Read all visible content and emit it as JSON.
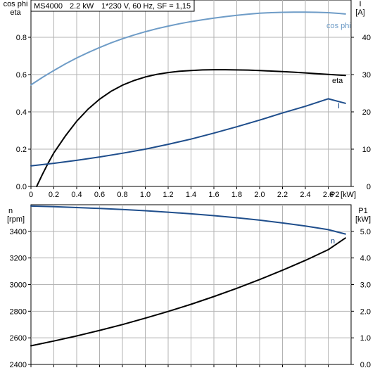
{
  "header": {
    "model": "MS4000",
    "power": "2.2 kW",
    "supply": "1*230 V, 60 Hz, SF = 1,15"
  },
  "colors": {
    "cosphi": "#6e9cc7",
    "eta": "#000000",
    "current": "#1f4e8c",
    "speed": "#1f4e8c",
    "p1": "#000000",
    "grid": "#b3b3b3",
    "frame": "#000000"
  },
  "chart_data": [
    {
      "type": "line",
      "title": "",
      "x_axis": {
        "label": "P2 [kW]",
        "label_name": "P2",
        "label_unit": "[kW]",
        "range": [
          0,
          2.8
        ],
        "ticks": [
          0,
          0.2,
          0.4,
          0.6,
          0.8,
          1.0,
          1.2,
          1.4,
          1.6,
          1.8,
          2.0,
          2.2,
          2.4,
          2.6
        ],
        "tick_labels": [
          "0",
          "0.2",
          "0.4",
          "0.6",
          "0.8",
          "1.0",
          "1.2",
          "1.4",
          "1.6",
          "1.8",
          "2.0",
          "2.2",
          "2.4",
          "2.6"
        ]
      },
      "y_left": {
        "label_lines": [
          "cos phi",
          "eta"
        ],
        "range": [
          0,
          1.0
        ],
        "ticks": [
          0,
          0.2,
          0.4,
          0.6,
          0.8
        ],
        "tick_labels": [
          "0.0",
          "0.2",
          "0.4",
          "0.6",
          "0.8"
        ]
      },
      "y_right": {
        "label_lines": [
          "I",
          "[A]"
        ],
        "range": [
          0,
          50
        ],
        "ticks": [
          0,
          10,
          20,
          30,
          40
        ],
        "tick_labels": [
          "0",
          "10",
          "20",
          "30",
          "40"
        ]
      },
      "grid": true,
      "series": [
        {
          "name": "cos phi",
          "axis": "left",
          "color_key": "cosphi",
          "x": [
            0,
            0.1,
            0.2,
            0.3,
            0.4,
            0.5,
            0.6,
            0.7,
            0.8,
            0.9,
            1.0,
            1.1,
            1.2,
            1.3,
            1.4,
            1.5,
            1.6,
            1.7,
            1.8,
            1.9,
            2.0,
            2.1,
            2.2,
            2.3,
            2.4,
            2.5,
            2.6,
            2.7,
            2.75
          ],
          "values": [
            0.545,
            0.585,
            0.622,
            0.657,
            0.689,
            0.718,
            0.745,
            0.77,
            0.792,
            0.812,
            0.83,
            0.846,
            0.86,
            0.873,
            0.884,
            0.894,
            0.903,
            0.911,
            0.918,
            0.924,
            0.929,
            0.932,
            0.934,
            0.935,
            0.935,
            0.934,
            0.932,
            0.928,
            0.925
          ]
        },
        {
          "name": "eta",
          "axis": "left",
          "color_key": "eta",
          "x": [
            0.05,
            0.1,
            0.15,
            0.2,
            0.3,
            0.4,
            0.5,
            0.6,
            0.7,
            0.8,
            0.9,
            1.0,
            1.1,
            1.2,
            1.3,
            1.4,
            1.5,
            1.6,
            1.7,
            1.8,
            1.9,
            2.0,
            2.1,
            2.2,
            2.3,
            2.4,
            2.5,
            2.6,
            2.7,
            2.75
          ],
          "values": [
            0.0,
            0.065,
            0.125,
            0.18,
            0.27,
            0.35,
            0.415,
            0.468,
            0.51,
            0.543,
            0.568,
            0.587,
            0.601,
            0.611,
            0.618,
            0.622,
            0.625,
            0.626,
            0.626,
            0.625,
            0.624,
            0.622,
            0.619,
            0.616,
            0.613,
            0.609,
            0.605,
            0.601,
            0.597,
            0.595
          ]
        },
        {
          "name": "I",
          "axis": "right",
          "color_key": "current",
          "x": [
            0,
            0.2,
            0.4,
            0.6,
            0.8,
            1.0,
            1.2,
            1.4,
            1.6,
            1.8,
            2.0,
            2.2,
            2.4,
            2.6,
            2.75
          ],
          "values": [
            5.5,
            6.2,
            7.0,
            7.9,
            8.9,
            10.0,
            11.3,
            12.7,
            14.3,
            16.0,
            17.8,
            19.7,
            21.5,
            23.5,
            22.3
          ]
        }
      ],
      "series_labels": [
        "cos phi",
        "eta",
        "I"
      ]
    },
    {
      "type": "line",
      "title": "",
      "x_axis": {
        "range": [
          0,
          2.8
        ],
        "ticks": [
          0,
          0.2,
          0.4,
          0.6,
          0.8,
          1.0,
          1.2,
          1.4,
          1.6,
          1.8,
          2.0,
          2.2,
          2.4,
          2.6
        ],
        "tick_labels": []
      },
      "y_left": {
        "label_lines": [
          "n",
          "[rpm]"
        ],
        "range": [
          2400,
          3600
        ],
        "ticks": [
          2400,
          2600,
          2800,
          3000,
          3200,
          3400
        ],
        "tick_labels": [
          "2400",
          "2600",
          "2800",
          "3000",
          "3200",
          "3400"
        ]
      },
      "y_right": {
        "label_lines": [
          "P1",
          "[kW]"
        ],
        "range": [
          0,
          6
        ],
        "ticks": [
          0,
          1,
          2,
          3,
          4,
          5
        ],
        "tick_labels": [
          "0.0",
          "1.0",
          "2.0",
          "3.0",
          "4.0",
          "5.0"
        ]
      },
      "grid": true,
      "series": [
        {
          "name": "n",
          "axis": "left",
          "color_key": "speed",
          "x": [
            0,
            0.2,
            0.4,
            0.6,
            0.8,
            1.0,
            1.2,
            1.4,
            1.6,
            1.8,
            2.0,
            2.2,
            2.4,
            2.6,
            2.75
          ],
          "values": [
            3590,
            3585,
            3579,
            3572,
            3564,
            3555,
            3544,
            3532,
            3518,
            3502,
            3484,
            3463,
            3440,
            3413,
            3380
          ]
        },
        {
          "name": "P1",
          "axis": "right",
          "color_key": "p1",
          "x": [
            0,
            0.2,
            0.4,
            0.6,
            0.8,
            1.0,
            1.2,
            1.4,
            1.6,
            1.8,
            2.0,
            2.2,
            2.4,
            2.6,
            2.75
          ],
          "values": [
            0.7,
            0.88,
            1.07,
            1.28,
            1.5,
            1.74,
            1.99,
            2.26,
            2.55,
            2.86,
            3.19,
            3.54,
            3.91,
            4.31,
            4.75
          ]
        }
      ],
      "series_labels": [
        "n"
      ]
    }
  ]
}
